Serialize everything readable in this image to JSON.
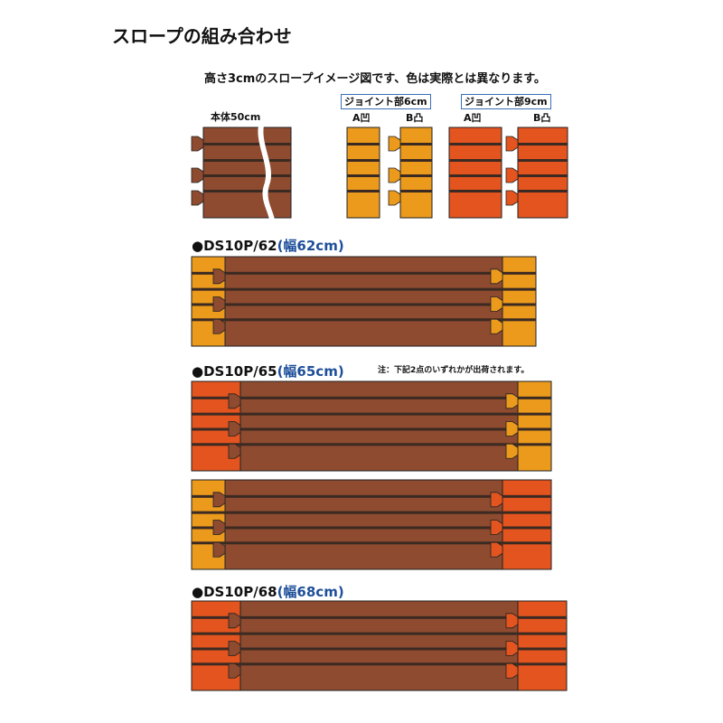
{
  "title": "スロープの組み合わせ",
  "subtitle": "高さ3cmのスロープイメージ図です、色は実際とは異なります。",
  "legend": {
    "body_label": "本体50cm",
    "joint6_label": "ジョイント部6cm",
    "joint9_label": "ジョイント部9cm",
    "a_label": "A凹",
    "b_label": "B凸"
  },
  "colors": {
    "body": "#8e4b30",
    "joint6": "#eb9a1c",
    "joint9": "#e3541f",
    "line": "#3b2a22"
  },
  "slopes": [
    {
      "model": "●DS10P/62",
      "width": "(幅62cm)",
      "variants": [
        [
          "joint6",
          "body",
          "joint6"
        ]
      ]
    },
    {
      "model": "●DS10P/65",
      "width": "(幅65cm)",
      "note": "注：下記2点のいずれかが出荷されます。",
      "variants": [
        [
          "joint9",
          "body",
          "joint6"
        ],
        [
          "joint6",
          "body",
          "joint9"
        ]
      ]
    },
    {
      "model": "●DS10P/68",
      "width": "(幅68cm)",
      "variants": [
        [
          "joint9",
          "body",
          "joint9"
        ]
      ]
    }
  ]
}
